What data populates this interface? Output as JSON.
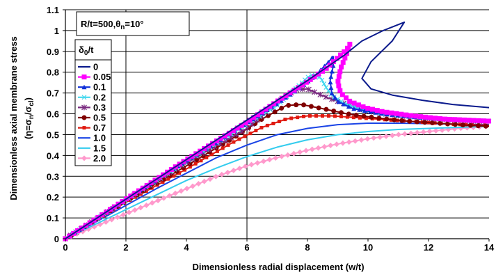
{
  "chart_data": {
    "type": "line",
    "ylabel_line1": "Dimensionless axial membrane stress",
    "ylabel_line2": "(η=σn/σcl)",
    "xlabel": "Dimensionless radial displacement (w/t)",
    "param_box": "R/t=500,θn=10°",
    "legend_title": "δ0/t",
    "xlim": [
      0,
      14
    ],
    "ylim": [
      0,
      1.1
    ],
    "x_ticks": [
      "0",
      "2",
      "4",
      "6",
      "8",
      "10",
      "12",
      "14"
    ],
    "y_ticks": [
      "0",
      "0.1",
      "0.2",
      "0.3",
      "0.4",
      "0.5",
      "0.6",
      "0.7",
      "0.8",
      "0.9",
      "1",
      "1.1"
    ],
    "grid": "horizontal lines at 0.1 intervals; vertical lines at 2 and 6",
    "legend_position": "left",
    "series": [
      {
        "name": "0",
        "color": "#0a1a8c",
        "marker": "none",
        "points": [
          [
            0,
            0
          ],
          [
            2,
            0.19
          ],
          [
            4,
            0.38
          ],
          [
            6,
            0.57
          ],
          [
            7,
            0.665
          ],
          [
            8,
            0.76
          ],
          [
            8.6,
            0.82
          ],
          [
            9.2,
            0.88
          ],
          [
            9.8,
            0.95
          ],
          [
            10.5,
            1.0
          ],
          [
            11.2,
            1.04
          ],
          [
            10.8,
            0.95
          ],
          [
            10.1,
            0.85
          ],
          [
            9.8,
            0.77
          ],
          [
            10.1,
            0.72
          ],
          [
            10.8,
            0.69
          ],
          [
            11.8,
            0.665
          ],
          [
            12.8,
            0.645
          ],
          [
            14,
            0.63
          ]
        ]
      },
      {
        "name": "0.05",
        "color": "#ff00ff",
        "marker": "square",
        "points": [
          [
            0,
            0
          ],
          [
            2,
            0.19
          ],
          [
            4,
            0.38
          ],
          [
            6,
            0.56
          ],
          [
            7,
            0.66
          ],
          [
            8,
            0.755
          ],
          [
            8.6,
            0.815
          ],
          [
            9.0,
            0.87
          ],
          [
            9.3,
            0.91
          ],
          [
            9.4,
            0.935
          ],
          [
            9.3,
            0.89
          ],
          [
            9.1,
            0.82
          ],
          [
            9.0,
            0.75
          ],
          [
            9.1,
            0.7
          ],
          [
            9.4,
            0.66
          ],
          [
            9.9,
            0.63
          ],
          [
            10.5,
            0.61
          ],
          [
            11.5,
            0.59
          ],
          [
            12.5,
            0.575
          ],
          [
            14,
            0.565
          ]
        ]
      },
      {
        "name": "0.1",
        "color": "#1030d8",
        "marker": "triangle",
        "points": [
          [
            0,
            0
          ],
          [
            2,
            0.19
          ],
          [
            4,
            0.375
          ],
          [
            6,
            0.555
          ],
          [
            7,
            0.65
          ],
          [
            7.8,
            0.73
          ],
          [
            8.3,
            0.79
          ],
          [
            8.7,
            0.85
          ],
          [
            8.85,
            0.875
          ],
          [
            8.85,
            0.83
          ],
          [
            8.75,
            0.76
          ],
          [
            8.8,
            0.7
          ],
          [
            9.0,
            0.66
          ],
          [
            9.5,
            0.625
          ],
          [
            10.5,
            0.6
          ],
          [
            11.5,
            0.585
          ],
          [
            12.5,
            0.575
          ],
          [
            14,
            0.565
          ]
        ]
      },
      {
        "name": "0.2",
        "color": "#44d8ee",
        "marker": "x",
        "points": [
          [
            0,
            0
          ],
          [
            2,
            0.185
          ],
          [
            4,
            0.37
          ],
          [
            6,
            0.55
          ],
          [
            7,
            0.64
          ],
          [
            7.6,
            0.72
          ],
          [
            8.0,
            0.775
          ],
          [
            8.2,
            0.79
          ],
          [
            8.45,
            0.77
          ],
          [
            8.6,
            0.73
          ],
          [
            8.8,
            0.69
          ],
          [
            9.2,
            0.65
          ],
          [
            9.8,
            0.62
          ],
          [
            10.5,
            0.6
          ],
          [
            11.5,
            0.585
          ],
          [
            12.5,
            0.575
          ],
          [
            14,
            0.565
          ]
        ]
      },
      {
        "name": "0.3",
        "color": "#7a2a80",
        "marker": "asterisk",
        "points": [
          [
            0,
            0
          ],
          [
            2,
            0.185
          ],
          [
            4,
            0.365
          ],
          [
            6,
            0.53
          ],
          [
            6.6,
            0.6
          ],
          [
            7.2,
            0.675
          ],
          [
            7.6,
            0.715
          ],
          [
            8.0,
            0.72
          ],
          [
            8.3,
            0.7
          ],
          [
            8.7,
            0.675
          ],
          [
            9.2,
            0.65
          ],
          [
            9.8,
            0.62
          ],
          [
            10.5,
            0.6
          ],
          [
            11.5,
            0.585
          ],
          [
            12.5,
            0.572
          ],
          [
            14,
            0.562
          ]
        ]
      },
      {
        "name": "0.5",
        "color": "#800000",
        "marker": "circle",
        "points": [
          [
            0,
            0
          ],
          [
            2,
            0.18
          ],
          [
            4,
            0.35
          ],
          [
            5.5,
            0.48
          ],
          [
            6.5,
            0.575
          ],
          [
            7.3,
            0.64
          ],
          [
            7.8,
            0.645
          ],
          [
            8.5,
            0.625
          ],
          [
            9.3,
            0.6
          ],
          [
            10.3,
            0.58
          ],
          [
            11.3,
            0.565
          ],
          [
            12.3,
            0.555
          ],
          [
            13.3,
            0.545
          ],
          [
            14,
            0.54
          ]
        ]
      },
      {
        "name": "0.7",
        "color": "#e01a10",
        "marker": "square-small",
        "points": [
          [
            0,
            0
          ],
          [
            2,
            0.175
          ],
          [
            4,
            0.335
          ],
          [
            5.5,
            0.46
          ],
          [
            6.5,
            0.535
          ],
          [
            7.3,
            0.575
          ],
          [
            8.0,
            0.59
          ],
          [
            8.8,
            0.59
          ],
          [
            9.8,
            0.58
          ],
          [
            10.8,
            0.57
          ],
          [
            11.8,
            0.56
          ],
          [
            12.8,
            0.55
          ],
          [
            14,
            0.545
          ]
        ]
      },
      {
        "name": "1.0",
        "color": "#1a44e6",
        "marker": "none",
        "points": [
          [
            0,
            0
          ],
          [
            1,
            0.08
          ],
          [
            2,
            0.16
          ],
          [
            3,
            0.24
          ],
          [
            4,
            0.315
          ],
          [
            5,
            0.39
          ],
          [
            6,
            0.45
          ],
          [
            7,
            0.5
          ],
          [
            8,
            0.53
          ],
          [
            9,
            0.548
          ],
          [
            10,
            0.555
          ],
          [
            11,
            0.555
          ],
          [
            12,
            0.553
          ],
          [
            13,
            0.55
          ],
          [
            14,
            0.548
          ]
        ]
      },
      {
        "name": "1.5",
        "color": "#33ccee",
        "marker": "none",
        "points": [
          [
            0,
            0
          ],
          [
            1,
            0.07
          ],
          [
            2,
            0.14
          ],
          [
            3,
            0.21
          ],
          [
            4,
            0.28
          ],
          [
            5,
            0.34
          ],
          [
            6,
            0.395
          ],
          [
            7,
            0.44
          ],
          [
            8,
            0.475
          ],
          [
            9,
            0.5
          ],
          [
            10,
            0.515
          ],
          [
            11,
            0.525
          ],
          [
            12,
            0.53
          ],
          [
            13,
            0.535
          ],
          [
            14,
            0.54
          ]
        ]
      },
      {
        "name": "2.0",
        "color": "#ff99cc",
        "marker": "diamond",
        "points": [
          [
            0,
            0
          ],
          [
            1,
            0.06
          ],
          [
            2,
            0.12
          ],
          [
            3,
            0.18
          ],
          [
            4,
            0.24
          ],
          [
            5,
            0.3
          ],
          [
            6,
            0.35
          ],
          [
            7,
            0.39
          ],
          [
            8,
            0.425
          ],
          [
            9,
            0.455
          ],
          [
            10,
            0.48
          ],
          [
            11,
            0.5
          ],
          [
            12,
            0.515
          ],
          [
            13,
            0.53
          ],
          [
            14,
            0.54
          ]
        ]
      }
    ]
  }
}
